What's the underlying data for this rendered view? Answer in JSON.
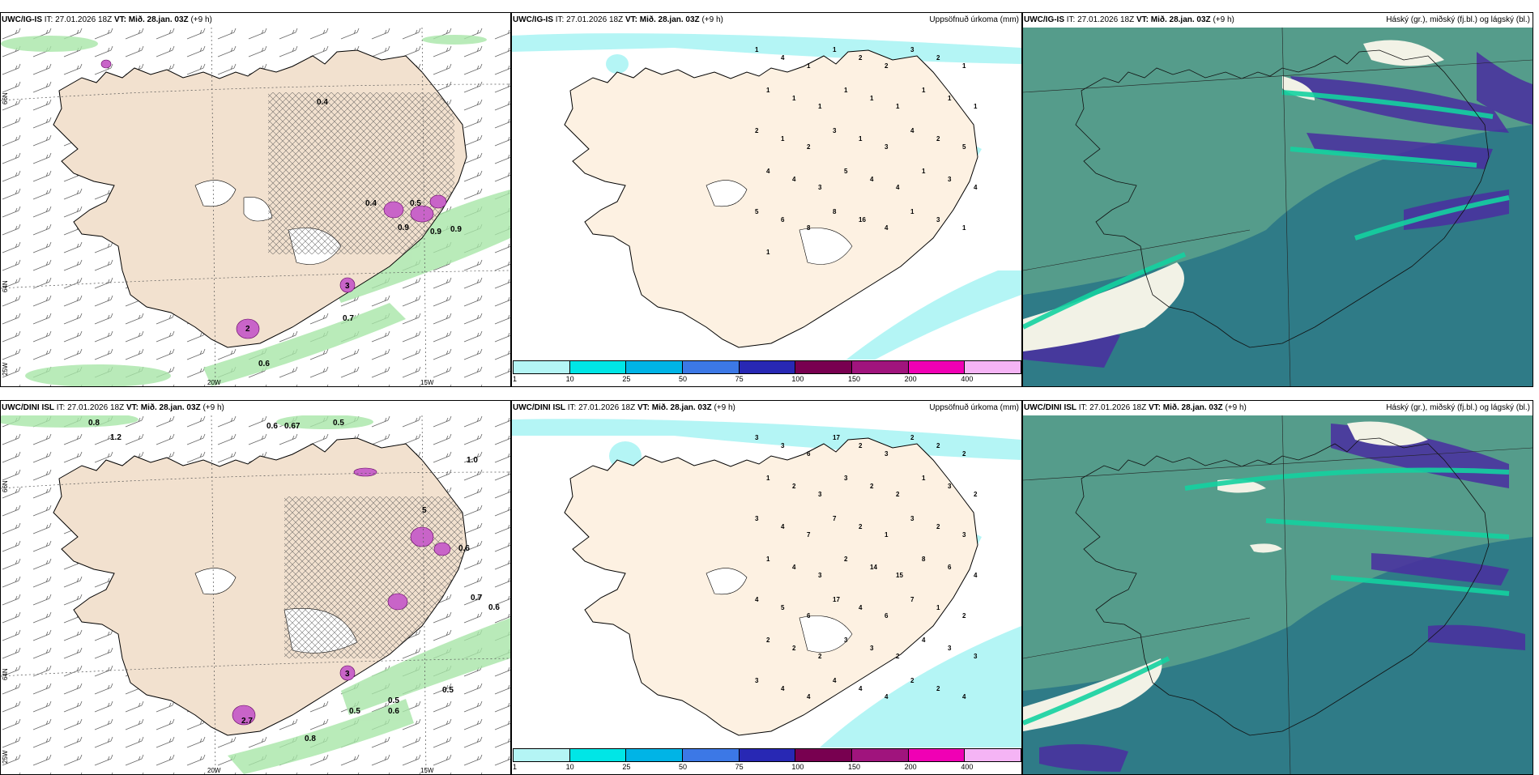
{
  "panels": [
    {
      "id": "p1",
      "model": "UWC/IG-IS",
      "it_label": "IT:",
      "it_value": "27.01.2026 18Z",
      "vt_label": "VT:",
      "vt_value": "Mið. 28.jan. 03Z",
      "lead": "(+9 h)",
      "right_label": ""
    },
    {
      "id": "p2",
      "model": "UWC/IG-IS",
      "it_label": "IT:",
      "it_value": "27.01.2026 18Z",
      "vt_label": "VT:",
      "vt_value": "Mið. 28.jan. 03Z",
      "lead": "(+9 h)",
      "right_label": "Uppsöfnuð úrkoma (mm)"
    },
    {
      "id": "p3",
      "model": "UWC/IG-IS",
      "it_label": "IT:",
      "it_value": "27.01.2026 18Z",
      "vt_label": "VT:",
      "vt_value": "Mið. 28.jan. 03Z",
      "lead": "(+9 h)",
      "right_label": "Háský (gr.), miðský (fj.bl.) og lágský (bl.)"
    },
    {
      "id": "p4",
      "model": "UWC/DINI ISL",
      "it_label": "IT:",
      "it_value": "27.01.2026 18Z",
      "vt_label": "VT:",
      "vt_value": "Mið. 28.jan. 03Z",
      "lead": "(+9 h)",
      "right_label": ""
    },
    {
      "id": "p5",
      "model": "UWC/DINI ISL",
      "it_label": "IT:",
      "it_value": "27.01.2026 18Z",
      "vt_label": "VT:",
      "vt_value": "Mið. 28.jan. 03Z",
      "lead": "(+9 h)",
      "right_label": "Uppsöfnuð úrkoma (mm)"
    },
    {
      "id": "p6",
      "model": "UWC/DINI ISL",
      "it_label": "IT:",
      "it_value": "27.01.2026 18Z",
      "vt_label": "VT:",
      "vt_value": "Mið. 28.jan. 03Z",
      "lead": "(+9 h)",
      "right_label": "Háský (gr.), miðský (fj.bl.) og lágský (bl.)"
    }
  ],
  "axis_labels": {
    "lat66": "66N",
    "lat64": "64N",
    "lon20": "20W",
    "lon15": "15W",
    "lon25": "25W"
  },
  "wind_panel_top": {
    "values": [
      "0.9",
      "0.9",
      "0.7",
      "0.6",
      "0.4",
      "0.5",
      "2",
      "3",
      "0.4",
      "0.9"
    ]
  },
  "wind_panel_bottom": {
    "values": [
      "0.8",
      "1.2",
      "0.6",
      "0.67",
      "0.5",
      "1.0",
      "0.7",
      "0.6",
      "0.5",
      "0.5",
      "0.6",
      "0.5",
      "0.8",
      "2.7",
      "5",
      "3",
      "0.6"
    ]
  },
  "precip_top": {
    "values": [
      "1",
      "4",
      "1",
      "1",
      "2",
      "2",
      "3",
      "2",
      "1",
      "1",
      "1",
      "1",
      "1",
      "1",
      "1",
      "1",
      "1",
      "1",
      "2",
      "1",
      "2",
      "3",
      "1",
      "3",
      "4",
      "2",
      "5",
      "4",
      "4",
      "3",
      "5",
      "4",
      "4",
      "1",
      "3",
      "4",
      "5",
      "6",
      "8",
      "8",
      "16",
      "4",
      "1",
      "3",
      "1",
      "1"
    ]
  },
  "precip_bottom": {
    "values": [
      "3",
      "3",
      "6",
      "17",
      "2",
      "3",
      "2",
      "2",
      "2",
      "1",
      "2",
      "3",
      "3",
      "2",
      "2",
      "1",
      "3",
      "2",
      "3",
      "4",
      "7",
      "7",
      "2",
      "1",
      "3",
      "2",
      "3",
      "1",
      "4",
      "3",
      "2",
      "14",
      "15",
      "8",
      "6",
      "4",
      "4",
      "5",
      "6",
      "17",
      "4",
      "6",
      "7",
      "1",
      "2",
      "2",
      "2",
      "2",
      "3",
      "3",
      "2",
      "4",
      "3",
      "3",
      "3",
      "4",
      "4",
      "4",
      "4",
      "4",
      "2",
      "2",
      "4"
    ]
  },
  "colorbar": {
    "labels": [
      "1",
      "10",
      "25",
      "50",
      "75",
      "100",
      "150",
      "200",
      "400"
    ],
    "colors": [
      "#b4f5f5",
      "#00e6e6",
      "#00b4e6",
      "#3c78e6",
      "#2828b4",
      "#780050",
      "#a0147d",
      "#f000b4",
      "#f5b4f5"
    ]
  },
  "cloud_colors": {
    "low": "#2b7d8a",
    "mid": "#4a2ea0",
    "high": "#f2f2e6",
    "bright": "#14d2a0",
    "base": "#5aa08c"
  }
}
